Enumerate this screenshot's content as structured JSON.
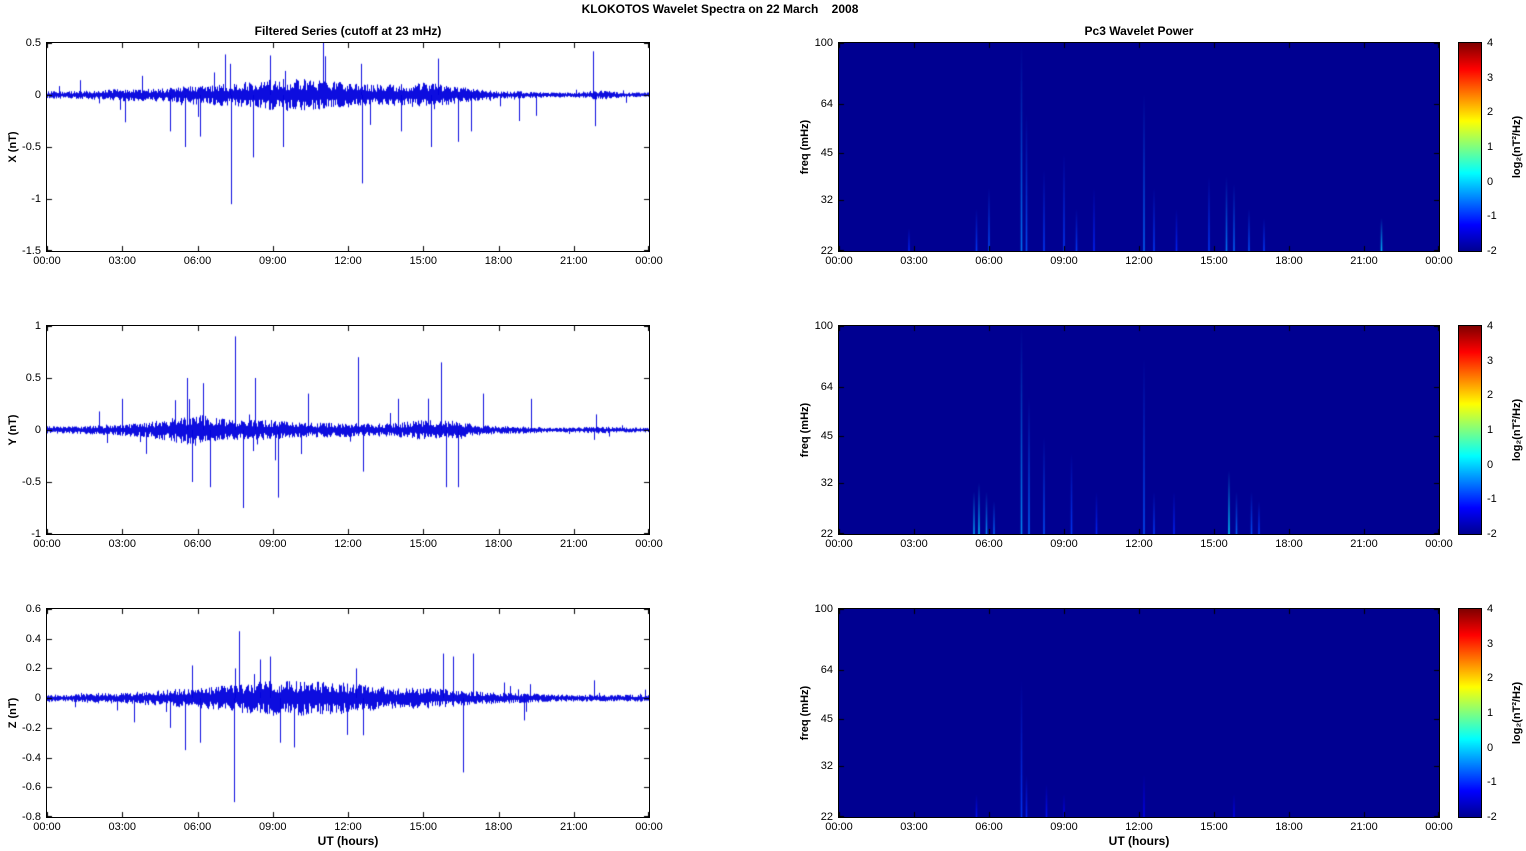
{
  "title": "KLOKOTOS Wavelet Spectra on 22 March    2008",
  "xlabel": "UT (hours)",
  "time_ticks": [
    "00:00",
    "03:00",
    "06:00",
    "09:00",
    "12:00",
    "15:00",
    "18:00",
    "21:00",
    "00:00"
  ],
  "colors": {
    "line": "#0000DD",
    "heat_bg": "#000091",
    "axis": "#000000",
    "jet": [
      "#000091",
      "#0000FF",
      "#00FFFF",
      "#FFFF00",
      "#FF0000",
      "#800000"
    ],
    "jet_pos": [
      0,
      0.125,
      0.375,
      0.625,
      0.875,
      1
    ]
  },
  "colorbar": {
    "label": "log₂(nT²/Hz)",
    "lim": [
      -2,
      4
    ],
    "ticks": [
      4,
      3,
      2,
      1,
      0,
      -1,
      -2
    ]
  },
  "chart_data": [
    {
      "id": "x-series",
      "type": "line",
      "title": "Filtered Series (cutoff at 23 mHz)",
      "ylabel": "X (nT)",
      "xlabel": "",
      "ylim": [
        -1.5,
        0.5
      ],
      "yticks": [
        0.5,
        0,
        -0.5,
        -1,
        -1.5
      ],
      "x_range_hours": [
        0,
        24
      ],
      "envelope": [
        0.03,
        0.03,
        0.04,
        0.05,
        0.05,
        0.06,
        0.08,
        0.09,
        0.11,
        0.13,
        0.13,
        0.12,
        0.1,
        0.08,
        0.09,
        0.1,
        0.08,
        0.05,
        0.03,
        0.03,
        0.02,
        0.02,
        0.04,
        0.02,
        0.02
      ],
      "spikes": [
        {
          "t": 4.9,
          "v": -0.35
        },
        {
          "t": 5.5,
          "v": -0.5
        },
        {
          "t": 6.1,
          "v": -0.4
        },
        {
          "t": 7.3,
          "v": 0.3
        },
        {
          "t": 7.35,
          "v": -1.05
        },
        {
          "t": 8.2,
          "v": -0.6
        },
        {
          "t": 8.9,
          "v": 0.38
        },
        {
          "t": 9.4,
          "v": -0.5
        },
        {
          "t": 12.5,
          "v": 0.3
        },
        {
          "t": 12.55,
          "v": -0.85
        },
        {
          "t": 14.1,
          "v": -0.35
        },
        {
          "t": 15.3,
          "v": -0.5
        },
        {
          "t": 15.6,
          "v": 0.35
        },
        {
          "t": 16.4,
          "v": -0.45
        },
        {
          "t": 16.9,
          "v": -0.35
        },
        {
          "t": 18.8,
          "v": -0.25
        },
        {
          "t": 19.5,
          "v": -0.2
        },
        {
          "t": 21.75,
          "v": 0.42
        },
        {
          "t": 21.85,
          "v": -0.3
        }
      ]
    },
    {
      "id": "y-series",
      "type": "line",
      "title": "",
      "ylabel": "Y (nT)",
      "xlabel": "",
      "ylim": [
        -1,
        1
      ],
      "yticks": [
        1,
        0.5,
        0,
        -0.5,
        -1
      ],
      "x_range_hours": [
        0,
        24
      ],
      "envelope": [
        0.03,
        0.03,
        0.04,
        0.05,
        0.06,
        0.1,
        0.13,
        0.09,
        0.08,
        0.08,
        0.06,
        0.06,
        0.06,
        0.05,
        0.06,
        0.08,
        0.08,
        0.05,
        0.03,
        0.03,
        0.02,
        0.02,
        0.03,
        0.02,
        0.02
      ],
      "spikes": [
        {
          "t": 3.0,
          "v": 0.3
        },
        {
          "t": 5.6,
          "v": 0.5
        },
        {
          "t": 5.8,
          "v": -0.5
        },
        {
          "t": 6.2,
          "v": 0.45
        },
        {
          "t": 6.5,
          "v": -0.55
        },
        {
          "t": 7.5,
          "v": 0.9
        },
        {
          "t": 7.8,
          "v": -0.75
        },
        {
          "t": 8.3,
          "v": 0.5
        },
        {
          "t": 9.2,
          "v": -0.65
        },
        {
          "t": 10.4,
          "v": 0.35
        },
        {
          "t": 12.4,
          "v": 0.7
        },
        {
          "t": 12.6,
          "v": -0.4
        },
        {
          "t": 14.0,
          "v": 0.3
        },
        {
          "t": 15.7,
          "v": 0.65
        },
        {
          "t": 15.9,
          "v": -0.55
        },
        {
          "t": 16.4,
          "v": -0.55
        },
        {
          "t": 17.4,
          "v": 0.35
        },
        {
          "t": 19.3,
          "v": 0.3
        },
        {
          "t": 21.9,
          "v": 0.15
        }
      ]
    },
    {
      "id": "z-series",
      "type": "line",
      "title": "",
      "ylabel": "Z (nT)",
      "xlabel": "UT (hours)",
      "ylim": [
        -0.8,
        0.6
      ],
      "yticks": [
        0.6,
        0.4,
        0.2,
        0,
        -0.2,
        -0.4,
        -0.6,
        -0.8
      ],
      "x_range_hours": [
        0,
        24
      ],
      "envelope": [
        0.02,
        0.02,
        0.03,
        0.03,
        0.04,
        0.05,
        0.06,
        0.07,
        0.09,
        0.1,
        0.1,
        0.09,
        0.09,
        0.07,
        0.06,
        0.06,
        0.05,
        0.04,
        0.03,
        0.03,
        0.02,
        0.02,
        0.02,
        0.02,
        0.02
      ],
      "spikes": [
        {
          "t": 4.9,
          "v": -0.2
        },
        {
          "t": 5.5,
          "v": -0.35
        },
        {
          "t": 5.8,
          "v": 0.22
        },
        {
          "t": 6.1,
          "v": -0.3
        },
        {
          "t": 7.45,
          "v": -0.7
        },
        {
          "t": 7.5,
          "v": 0.2
        },
        {
          "t": 8.5,
          "v": 0.26
        },
        {
          "t": 8.9,
          "v": 0.28
        },
        {
          "t": 9.3,
          "v": -0.3
        },
        {
          "t": 12.3,
          "v": 0.2
        },
        {
          "t": 12.6,
          "v": -0.25
        },
        {
          "t": 15.8,
          "v": 0.3
        },
        {
          "t": 16.2,
          "v": 0.28
        },
        {
          "t": 16.6,
          "v": -0.5
        },
        {
          "t": 17.0,
          "v": 0.3
        },
        {
          "t": 19.0,
          "v": -0.15
        },
        {
          "t": 21.8,
          "v": 0.12
        }
      ]
    },
    {
      "id": "x-wavelet",
      "type": "heatmap",
      "title": "Pc3 Wavelet Power",
      "ylabel": "freq (mHz)",
      "xlabel": "",
      "ylim": [
        22,
        100
      ],
      "yticks": [
        100,
        64,
        45,
        32,
        22
      ],
      "yscale": "log",
      "x_range_hours": [
        0,
        24
      ],
      "streaks": [
        {
          "t": 2.8,
          "f": 26,
          "i": 0.25
        },
        {
          "t": 5.5,
          "f": 30,
          "i": 0.3
        },
        {
          "t": 6.0,
          "f": 35,
          "i": 0.35
        },
        {
          "t": 7.3,
          "f": 100,
          "i": 0.45
        },
        {
          "t": 7.5,
          "f": 60,
          "i": 0.35
        },
        {
          "t": 8.2,
          "f": 40,
          "i": 0.3
        },
        {
          "t": 9.0,
          "f": 45,
          "i": 0.3
        },
        {
          "t": 9.5,
          "f": 30,
          "i": 0.3
        },
        {
          "t": 10.2,
          "f": 35,
          "i": 0.25
        },
        {
          "t": 12.2,
          "f": 70,
          "i": 0.4
        },
        {
          "t": 12.6,
          "f": 35,
          "i": 0.3
        },
        {
          "t": 13.5,
          "f": 30,
          "i": 0.25
        },
        {
          "t": 14.8,
          "f": 38,
          "i": 0.3
        },
        {
          "t": 15.5,
          "f": 38,
          "i": 0.45
        },
        {
          "t": 15.8,
          "f": 36,
          "i": 0.4
        },
        {
          "t": 16.4,
          "f": 30,
          "i": 0.35
        },
        {
          "t": 17.0,
          "f": 28,
          "i": 0.3
        },
        {
          "t": 21.7,
          "f": 28,
          "i": 0.6
        }
      ]
    },
    {
      "id": "y-wavelet",
      "type": "heatmap",
      "title": "",
      "ylabel": "freq (mHz)",
      "xlabel": "",
      "ylim": [
        22,
        100
      ],
      "yticks": [
        100,
        64,
        45,
        32,
        22
      ],
      "yscale": "log",
      "x_range_hours": [
        0,
        24
      ],
      "streaks": [
        {
          "t": 5.4,
          "f": 30,
          "i": 0.55
        },
        {
          "t": 5.6,
          "f": 32,
          "i": 0.6
        },
        {
          "t": 5.9,
          "f": 30,
          "i": 0.5
        },
        {
          "t": 6.2,
          "f": 28,
          "i": 0.4
        },
        {
          "t": 7.3,
          "f": 100,
          "i": 0.5
        },
        {
          "t": 7.6,
          "f": 60,
          "i": 0.4
        },
        {
          "t": 8.2,
          "f": 45,
          "i": 0.35
        },
        {
          "t": 9.3,
          "f": 40,
          "i": 0.3
        },
        {
          "t": 10.3,
          "f": 30,
          "i": 0.25
        },
        {
          "t": 12.2,
          "f": 80,
          "i": 0.35
        },
        {
          "t": 12.6,
          "f": 30,
          "i": 0.3
        },
        {
          "t": 13.4,
          "f": 30,
          "i": 0.25
        },
        {
          "t": 15.6,
          "f": 35,
          "i": 0.65
        },
        {
          "t": 15.9,
          "f": 30,
          "i": 0.4
        },
        {
          "t": 16.5,
          "f": 30,
          "i": 0.35
        },
        {
          "t": 16.8,
          "f": 28,
          "i": 0.3
        }
      ]
    },
    {
      "id": "z-wavelet",
      "type": "heatmap",
      "title": "",
      "ylabel": "freq (mHz)",
      "xlabel": "UT (hours)",
      "ylim": [
        22,
        100
      ],
      "yticks": [
        100,
        64,
        45,
        32,
        22
      ],
      "yscale": "log",
      "x_range_hours": [
        0,
        24
      ],
      "streaks": [
        {
          "t": 5.5,
          "f": 26,
          "i": 0.2
        },
        {
          "t": 7.3,
          "f": 60,
          "i": 0.3
        },
        {
          "t": 7.5,
          "f": 30,
          "i": 0.25
        },
        {
          "t": 8.3,
          "f": 28,
          "i": 0.2
        },
        {
          "t": 9.0,
          "f": 26,
          "i": 0.15
        },
        {
          "t": 12.2,
          "f": 30,
          "i": 0.15
        },
        {
          "t": 15.8,
          "f": 26,
          "i": 0.15
        }
      ]
    }
  ]
}
